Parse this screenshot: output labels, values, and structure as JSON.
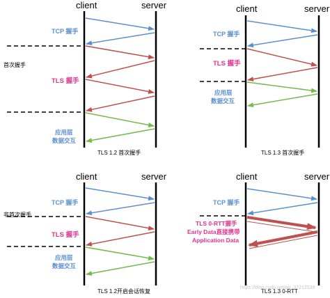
{
  "actors": {
    "client": "client",
    "server": "server"
  },
  "side_labels": {
    "full": "首次握手",
    "resume": "非首次握手"
  },
  "tcp_label": "TCP 握手",
  "tls_label": "TLS 握手",
  "app_label": [
    "应用层",
    "数据交互"
  ],
  "zero_rtt_labels": [
    "TLS  0-RTT握手",
    "Early Data直接携带",
    "Application Data"
  ],
  "captions": {
    "tl": "TLS 1.2 首次握手",
    "tr": "TLS 1.3 首次握手",
    "bl": "TLS 1.2开启会话恢复",
    "br": "TLS 1.3 0-RTT"
  },
  "watermark": "https://blog.csdn.net/qq_37212539",
  "colors": {
    "tcp": "#5b8fd0",
    "tls": "#c0504d",
    "app": "#76b94b",
    "tls_text": "#e0338e"
  }
}
